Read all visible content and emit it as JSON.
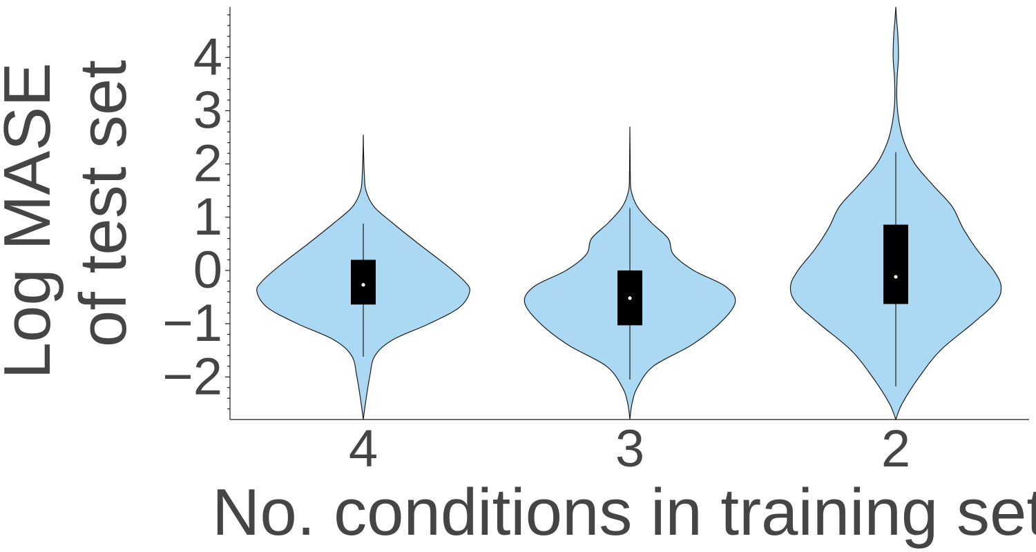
{
  "chart_data": {
    "type": "violin",
    "title": "",
    "xlabel": "No. conditions in training set",
    "ylabel_line1": "Log MASE",
    "ylabel_line2": "of test set",
    "categories": [
      "4",
      "3",
      "2"
    ],
    "ylim": [
      -2.8,
      4.95
    ],
    "yticks": [
      -2,
      -1,
      0,
      1,
      2,
      3,
      4
    ],
    "ytick_labels": [
      "−2",
      "−1",
      "0",
      "1",
      "2",
      "3",
      "4"
    ],
    "grid": false,
    "legend": "none",
    "colors": {
      "violin_fill": "#abd9f3",
      "violin_stroke": "#1a1a1a",
      "box_fill": "#000000",
      "median_dot": "#ffffff",
      "text": "#454545",
      "axis": "#1a1a1a"
    },
    "violins": [
      {
        "category": "4",
        "min": -2.8,
        "max": 2.55,
        "whisker_low": -1.62,
        "whisker_high": 0.88,
        "q1": -0.64,
        "q3": 0.2,
        "median": -0.27,
        "density": [
          [
            -2.8,
            0.0
          ],
          [
            -2.5,
            0.02
          ],
          [
            -2.0,
            0.06
          ],
          [
            -1.6,
            0.11
          ],
          [
            -1.3,
            0.28
          ],
          [
            -1.0,
            0.62
          ],
          [
            -0.7,
            0.9
          ],
          [
            -0.4,
            1.0
          ],
          [
            -0.2,
            0.95
          ],
          [
            0.1,
            0.78
          ],
          [
            0.5,
            0.52
          ],
          [
            0.9,
            0.27
          ],
          [
            1.2,
            0.1
          ],
          [
            1.5,
            0.025
          ],
          [
            1.8,
            0.01
          ],
          [
            2.2,
            0.003
          ],
          [
            2.55,
            0.0
          ]
        ]
      },
      {
        "category": "3",
        "min": -2.8,
        "max": 2.7,
        "whisker_low": -2.05,
        "whisker_high": 1.17,
        "q1": -1.03,
        "q3": 0.0,
        "median": -0.52,
        "density": [
          [
            -2.8,
            0.0
          ],
          [
            -2.5,
            0.02
          ],
          [
            -2.2,
            0.07
          ],
          [
            -1.8,
            0.22
          ],
          [
            -1.4,
            0.58
          ],
          [
            -1.0,
            0.84
          ],
          [
            -0.6,
            0.99
          ],
          [
            -0.3,
            0.9
          ],
          [
            0.0,
            0.6
          ],
          [
            0.3,
            0.41
          ],
          [
            0.6,
            0.36
          ],
          [
            0.9,
            0.2
          ],
          [
            1.2,
            0.07
          ],
          [
            1.5,
            0.012
          ],
          [
            1.8,
            0.004
          ],
          [
            2.2,
            0.002
          ],
          [
            2.7,
            0.0
          ]
        ]
      },
      {
        "category": "2",
        "min": -2.8,
        "max": 4.95,
        "whisker_low": -2.18,
        "whisker_high": 2.22,
        "q1": -0.63,
        "q3": 0.86,
        "median": -0.12,
        "density": [
          [
            -2.8,
            0.0
          ],
          [
            -2.5,
            0.06
          ],
          [
            -2.0,
            0.22
          ],
          [
            -1.5,
            0.42
          ],
          [
            -1.0,
            0.72
          ],
          [
            -0.6,
            0.94
          ],
          [
            -0.3,
            0.99
          ],
          [
            0.0,
            0.92
          ],
          [
            0.4,
            0.76
          ],
          [
            0.8,
            0.63
          ],
          [
            1.2,
            0.53
          ],
          [
            1.6,
            0.35
          ],
          [
            2.0,
            0.18
          ],
          [
            2.4,
            0.08
          ],
          [
            2.8,
            0.03
          ],
          [
            3.2,
            0.01
          ],
          [
            3.6,
            0.012
          ],
          [
            4.0,
            0.025
          ],
          [
            4.4,
            0.02
          ],
          [
            4.7,
            0.008
          ],
          [
            4.95,
            0.0
          ]
        ]
      }
    ]
  }
}
